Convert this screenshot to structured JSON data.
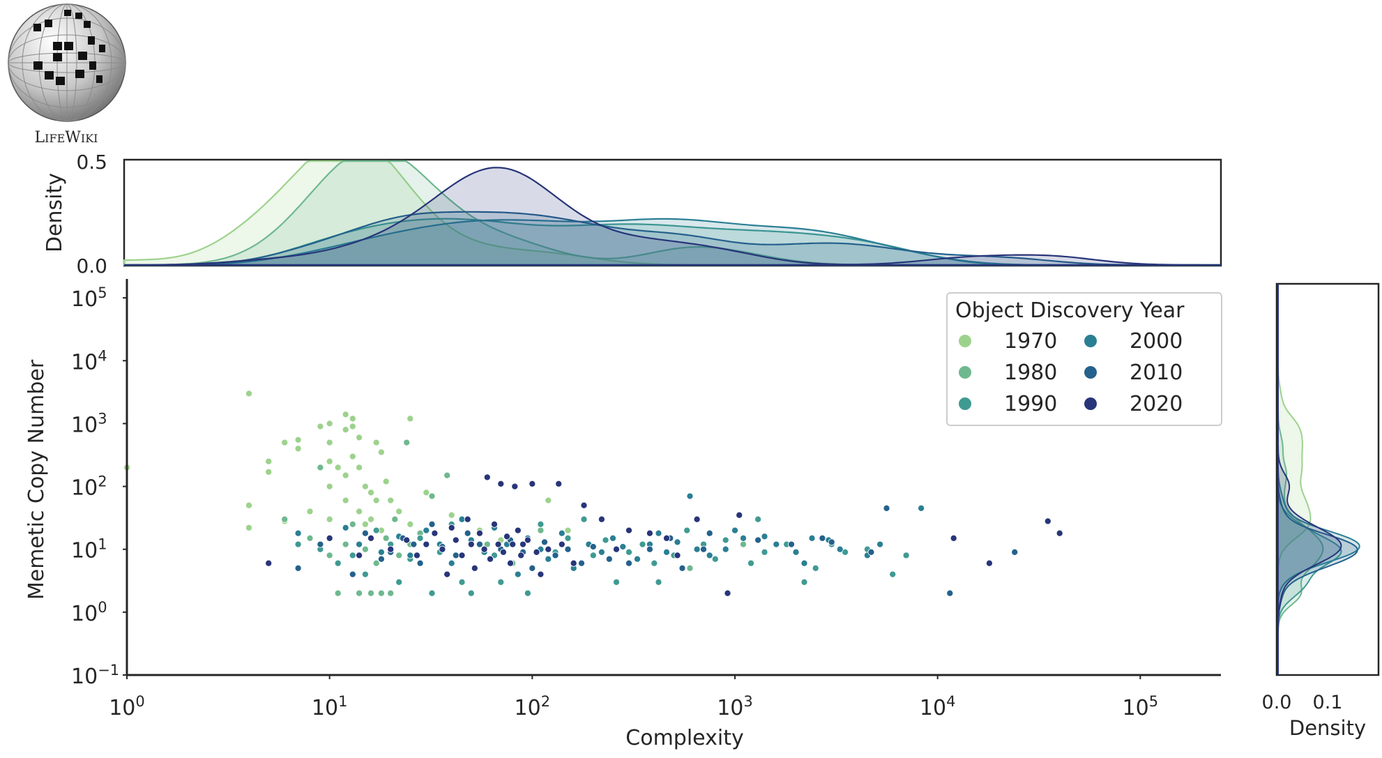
{
  "logo": {
    "icon": "lifewiki-globe-icon",
    "name_big1": "L",
    "name_small1": "IFE",
    "name_big2": "W",
    "name_small2": "IKI"
  },
  "colors": {
    "1970": "#9dd28d",
    "1980": "#6fb88f",
    "1990": "#3f9a92",
    "2000": "#2a7f94",
    "2010": "#24618c",
    "2020": "#283579",
    "axis": "#262626"
  },
  "chart_data": {
    "type": "scatter",
    "xlabel": "Complexity",
    "ylabel": "Memetic Copy Number",
    "x_scale": "log",
    "y_scale": "log",
    "xlim": [
      1,
      250000
    ],
    "ylim": [
      0.1,
      200000
    ],
    "x_ticks": [
      {
        "value": 1,
        "base": "10",
        "exp": "0"
      },
      {
        "value": 10,
        "base": "10",
        "exp": "1"
      },
      {
        "value": 100,
        "base": "10",
        "exp": "2"
      },
      {
        "value": 1000,
        "base": "10",
        "exp": "3"
      },
      {
        "value": 10000,
        "base": "10",
        "exp": "4"
      },
      {
        "value": 100000,
        "base": "10",
        "exp": "5"
      }
    ],
    "y_ticks": [
      {
        "value": 0.1,
        "base": "10",
        "exp": "−1"
      },
      {
        "value": 1,
        "base": "10",
        "exp": "0"
      },
      {
        "value": 10,
        "base": "10",
        "exp": "1"
      },
      {
        "value": 100,
        "base": "10",
        "exp": "2"
      },
      {
        "value": 1000,
        "base": "10",
        "exp": "3"
      },
      {
        "value": 10000,
        "base": "10",
        "exp": "4"
      },
      {
        "value": 100000,
        "base": "10",
        "exp": "5"
      }
    ],
    "legend": {
      "title": "Object Discovery Year",
      "placement": "upper-right",
      "entries": [
        "1970",
        "1980",
        "1990",
        "2000",
        "2010",
        "2020"
      ]
    },
    "grid": false,
    "series": [
      {
        "name": "1970",
        "points": [
          [
            1,
            200
          ],
          [
            4,
            3000
          ],
          [
            4,
            50
          ],
          [
            4,
            22
          ],
          [
            5,
            250
          ],
          [
            5,
            170
          ],
          [
            6,
            500
          ],
          [
            6,
            28
          ],
          [
            7,
            550
          ],
          [
            7,
            400
          ],
          [
            8,
            40
          ],
          [
            9,
            900
          ],
          [
            10,
            1000
          ],
          [
            10,
            500
          ],
          [
            10,
            250
          ],
          [
            10,
            100
          ],
          [
            10,
            30
          ],
          [
            11,
            200
          ],
          [
            12,
            1400
          ],
          [
            12,
            800
          ],
          [
            12,
            150
          ],
          [
            12,
            60
          ],
          [
            13,
            1200
          ],
          [
            13,
            900
          ],
          [
            13,
            300
          ],
          [
            14,
            600
          ],
          [
            14,
            200
          ],
          [
            14,
            40
          ],
          [
            15,
            100
          ],
          [
            15,
            25
          ],
          [
            16,
            80
          ],
          [
            16,
            30
          ],
          [
            17,
            500
          ],
          [
            17,
            60
          ],
          [
            18,
            350
          ],
          [
            18,
            20
          ],
          [
            19,
            120
          ],
          [
            20,
            60
          ],
          [
            22,
            40
          ],
          [
            25,
            1200
          ],
          [
            25,
            25
          ],
          [
            30,
            80
          ],
          [
            40,
            35
          ],
          [
            55,
            20
          ],
          [
            70,
            14
          ],
          [
            120,
            60
          ],
          [
            150,
            20
          ]
        ]
      },
      {
        "name": "1980",
        "points": [
          [
            6,
            30
          ],
          [
            8,
            15
          ],
          [
            9,
            200
          ],
          [
            10,
            8
          ],
          [
            11,
            2
          ],
          [
            12,
            12
          ],
          [
            13,
            25
          ],
          [
            13,
            4
          ],
          [
            14,
            2
          ],
          [
            15,
            10
          ],
          [
            16,
            2
          ],
          [
            17,
            6
          ],
          [
            18,
            2
          ],
          [
            19,
            15
          ],
          [
            20,
            2
          ],
          [
            21,
            30
          ],
          [
            22,
            8
          ],
          [
            24,
            500
          ],
          [
            25,
            12
          ],
          [
            28,
            18
          ],
          [
            32,
            70
          ],
          [
            38,
            150
          ],
          [
            45,
            8
          ],
          [
            60,
            12
          ],
          [
            80,
            6
          ],
          [
            110,
            20
          ],
          [
            550,
            5
          ],
          [
            600,
            5
          ],
          [
            1100,
            12
          ]
        ]
      },
      {
        "name": "1990",
        "points": [
          [
            7,
            12
          ],
          [
            9,
            10
          ],
          [
            11,
            6
          ],
          [
            13,
            8
          ],
          [
            15,
            4
          ],
          [
            17,
            20
          ],
          [
            20,
            12
          ],
          [
            22,
            3
          ],
          [
            25,
            7
          ],
          [
            28,
            15
          ],
          [
            32,
            2
          ],
          [
            35,
            9
          ],
          [
            40,
            25
          ],
          [
            45,
            3
          ],
          [
            50,
            2
          ],
          [
            55,
            18
          ],
          [
            65,
            8
          ],
          [
            70,
            3
          ],
          [
            80,
            12
          ],
          [
            95,
            2
          ],
          [
            110,
            25
          ],
          [
            130,
            9
          ],
          [
            150,
            15
          ],
          [
            180,
            30
          ],
          [
            200,
            8
          ],
          [
            230,
            14
          ],
          [
            260,
            3
          ],
          [
            300,
            9
          ],
          [
            350,
            12
          ],
          [
            400,
            6
          ],
          [
            420,
            3
          ],
          [
            500,
            8
          ],
          [
            580,
            20
          ],
          [
            700,
            12
          ],
          [
            800,
            7
          ],
          [
            900,
            14
          ],
          [
            1200,
            6
          ],
          [
            1300,
            30
          ],
          [
            1400,
            9
          ],
          [
            1800,
            12
          ],
          [
            2200,
            3
          ],
          [
            2500,
            5
          ],
          [
            3000,
            12
          ],
          [
            3500,
            9
          ],
          [
            4500,
            10
          ],
          [
            6000,
            4
          ],
          [
            7000,
            8
          ]
        ]
      },
      {
        "name": "2000",
        "points": [
          [
            7,
            18
          ],
          [
            12,
            22
          ],
          [
            14,
            12
          ],
          [
            18,
            9
          ],
          [
            22,
            16
          ],
          [
            25,
            8
          ],
          [
            30,
            20
          ],
          [
            35,
            12
          ],
          [
            40,
            6
          ],
          [
            45,
            30
          ],
          [
            50,
            14
          ],
          [
            58,
            9
          ],
          [
            65,
            22
          ],
          [
            75,
            12
          ],
          [
            85,
            4
          ],
          [
            95,
            15
          ],
          [
            110,
            10
          ],
          [
            120,
            7
          ],
          [
            140,
            18
          ],
          [
            160,
            5
          ],
          [
            190,
            12
          ],
          [
            220,
            9
          ],
          [
            250,
            15
          ],
          [
            280,
            11
          ],
          [
            330,
            7
          ],
          [
            380,
            12
          ],
          [
            420,
            18
          ],
          [
            460,
            9
          ],
          [
            520,
            13
          ],
          [
            600,
            70
          ],
          [
            650,
            10
          ],
          [
            750,
            8
          ],
          [
            900,
            10
          ],
          [
            1000,
            20
          ],
          [
            1100,
            15
          ],
          [
            1400,
            16
          ],
          [
            1600,
            12
          ],
          [
            2000,
            9
          ],
          [
            2200,
            6
          ],
          [
            2400,
            15
          ],
          [
            2900,
            14
          ],
          [
            3300,
            10
          ],
          [
            4500,
            8
          ],
          [
            5200,
            12
          ],
          [
            8300,
            45
          ]
        ]
      },
      {
        "name": "2010",
        "points": [
          [
            7,
            5
          ],
          [
            9,
            12
          ],
          [
            13,
            4
          ],
          [
            15,
            18
          ],
          [
            18,
            7
          ],
          [
            20,
            9
          ],
          [
            23,
            15
          ],
          [
            26,
            12
          ],
          [
            28,
            6
          ],
          [
            32,
            25
          ],
          [
            36,
            11
          ],
          [
            42,
            8
          ],
          [
            48,
            18
          ],
          [
            55,
            12
          ],
          [
            62,
            7
          ],
          [
            70,
            10
          ],
          [
            78,
            14
          ],
          [
            90,
            9
          ],
          [
            100,
            5
          ],
          [
            115,
            13
          ],
          [
            130,
            8
          ],
          [
            150,
            10
          ],
          [
            175,
            6
          ],
          [
            200,
            11
          ],
          [
            240,
            7
          ],
          [
            300,
            6
          ],
          [
            380,
            10
          ],
          [
            480,
            15
          ],
          [
            550,
            5
          ],
          [
            700,
            10
          ],
          [
            750,
            18
          ],
          [
            1300,
            14
          ],
          [
            1900,
            12
          ],
          [
            2700,
            15
          ],
          [
            3000,
            13
          ],
          [
            4700,
            9
          ],
          [
            5600,
            45
          ],
          [
            11500,
            2
          ],
          [
            24000,
            9
          ]
        ]
      },
      {
        "name": "2020",
        "points": [
          [
            5,
            6
          ],
          [
            10,
            15
          ],
          [
            14,
            8
          ],
          [
            16,
            15
          ],
          [
            20,
            10
          ],
          [
            24,
            14
          ],
          [
            27,
            8
          ],
          [
            30,
            12
          ],
          [
            33,
            18
          ],
          [
            36,
            10
          ],
          [
            38,
            4
          ],
          [
            40,
            22
          ],
          [
            42,
            14
          ],
          [
            45,
            8
          ],
          [
            48,
            30
          ],
          [
            50,
            12
          ],
          [
            52,
            5
          ],
          [
            55,
            18
          ],
          [
            58,
            10
          ],
          [
            60,
            140
          ],
          [
            62,
            7
          ],
          [
            65,
            25
          ],
          [
            68,
            12
          ],
          [
            70,
            110
          ],
          [
            72,
            9
          ],
          [
            75,
            16
          ],
          [
            78,
            6
          ],
          [
            80,
            12
          ],
          [
            82,
            100
          ],
          [
            85,
            20
          ],
          [
            88,
            8
          ],
          [
            90,
            12
          ],
          [
            95,
            14
          ],
          [
            100,
            110
          ],
          [
            105,
            9
          ],
          [
            110,
            4
          ],
          [
            120,
            10
          ],
          [
            135,
            110
          ],
          [
            140,
            12
          ],
          [
            160,
            6
          ],
          [
            180,
            50
          ],
          [
            220,
            30
          ],
          [
            260,
            10
          ],
          [
            300,
            20
          ],
          [
            380,
            18
          ],
          [
            460,
            15
          ],
          [
            520,
            8
          ],
          [
            650,
            30
          ],
          [
            920,
            2
          ],
          [
            1050,
            35
          ],
          [
            12000,
            15
          ],
          [
            18000,
            6
          ],
          [
            35000,
            28
          ],
          [
            40000,
            18
          ]
        ]
      }
    ],
    "top_marginal": {
      "ylabel": "Density",
      "y_ticks": [
        "0.0",
        "0.5"
      ],
      "ylim": [
        0,
        0.5
      ]
    },
    "right_marginal": {
      "xlabel": "Density",
      "x_ticks": [
        "0.0",
        "0.1"
      ],
      "xlim": [
        0,
        0.2
      ]
    }
  }
}
